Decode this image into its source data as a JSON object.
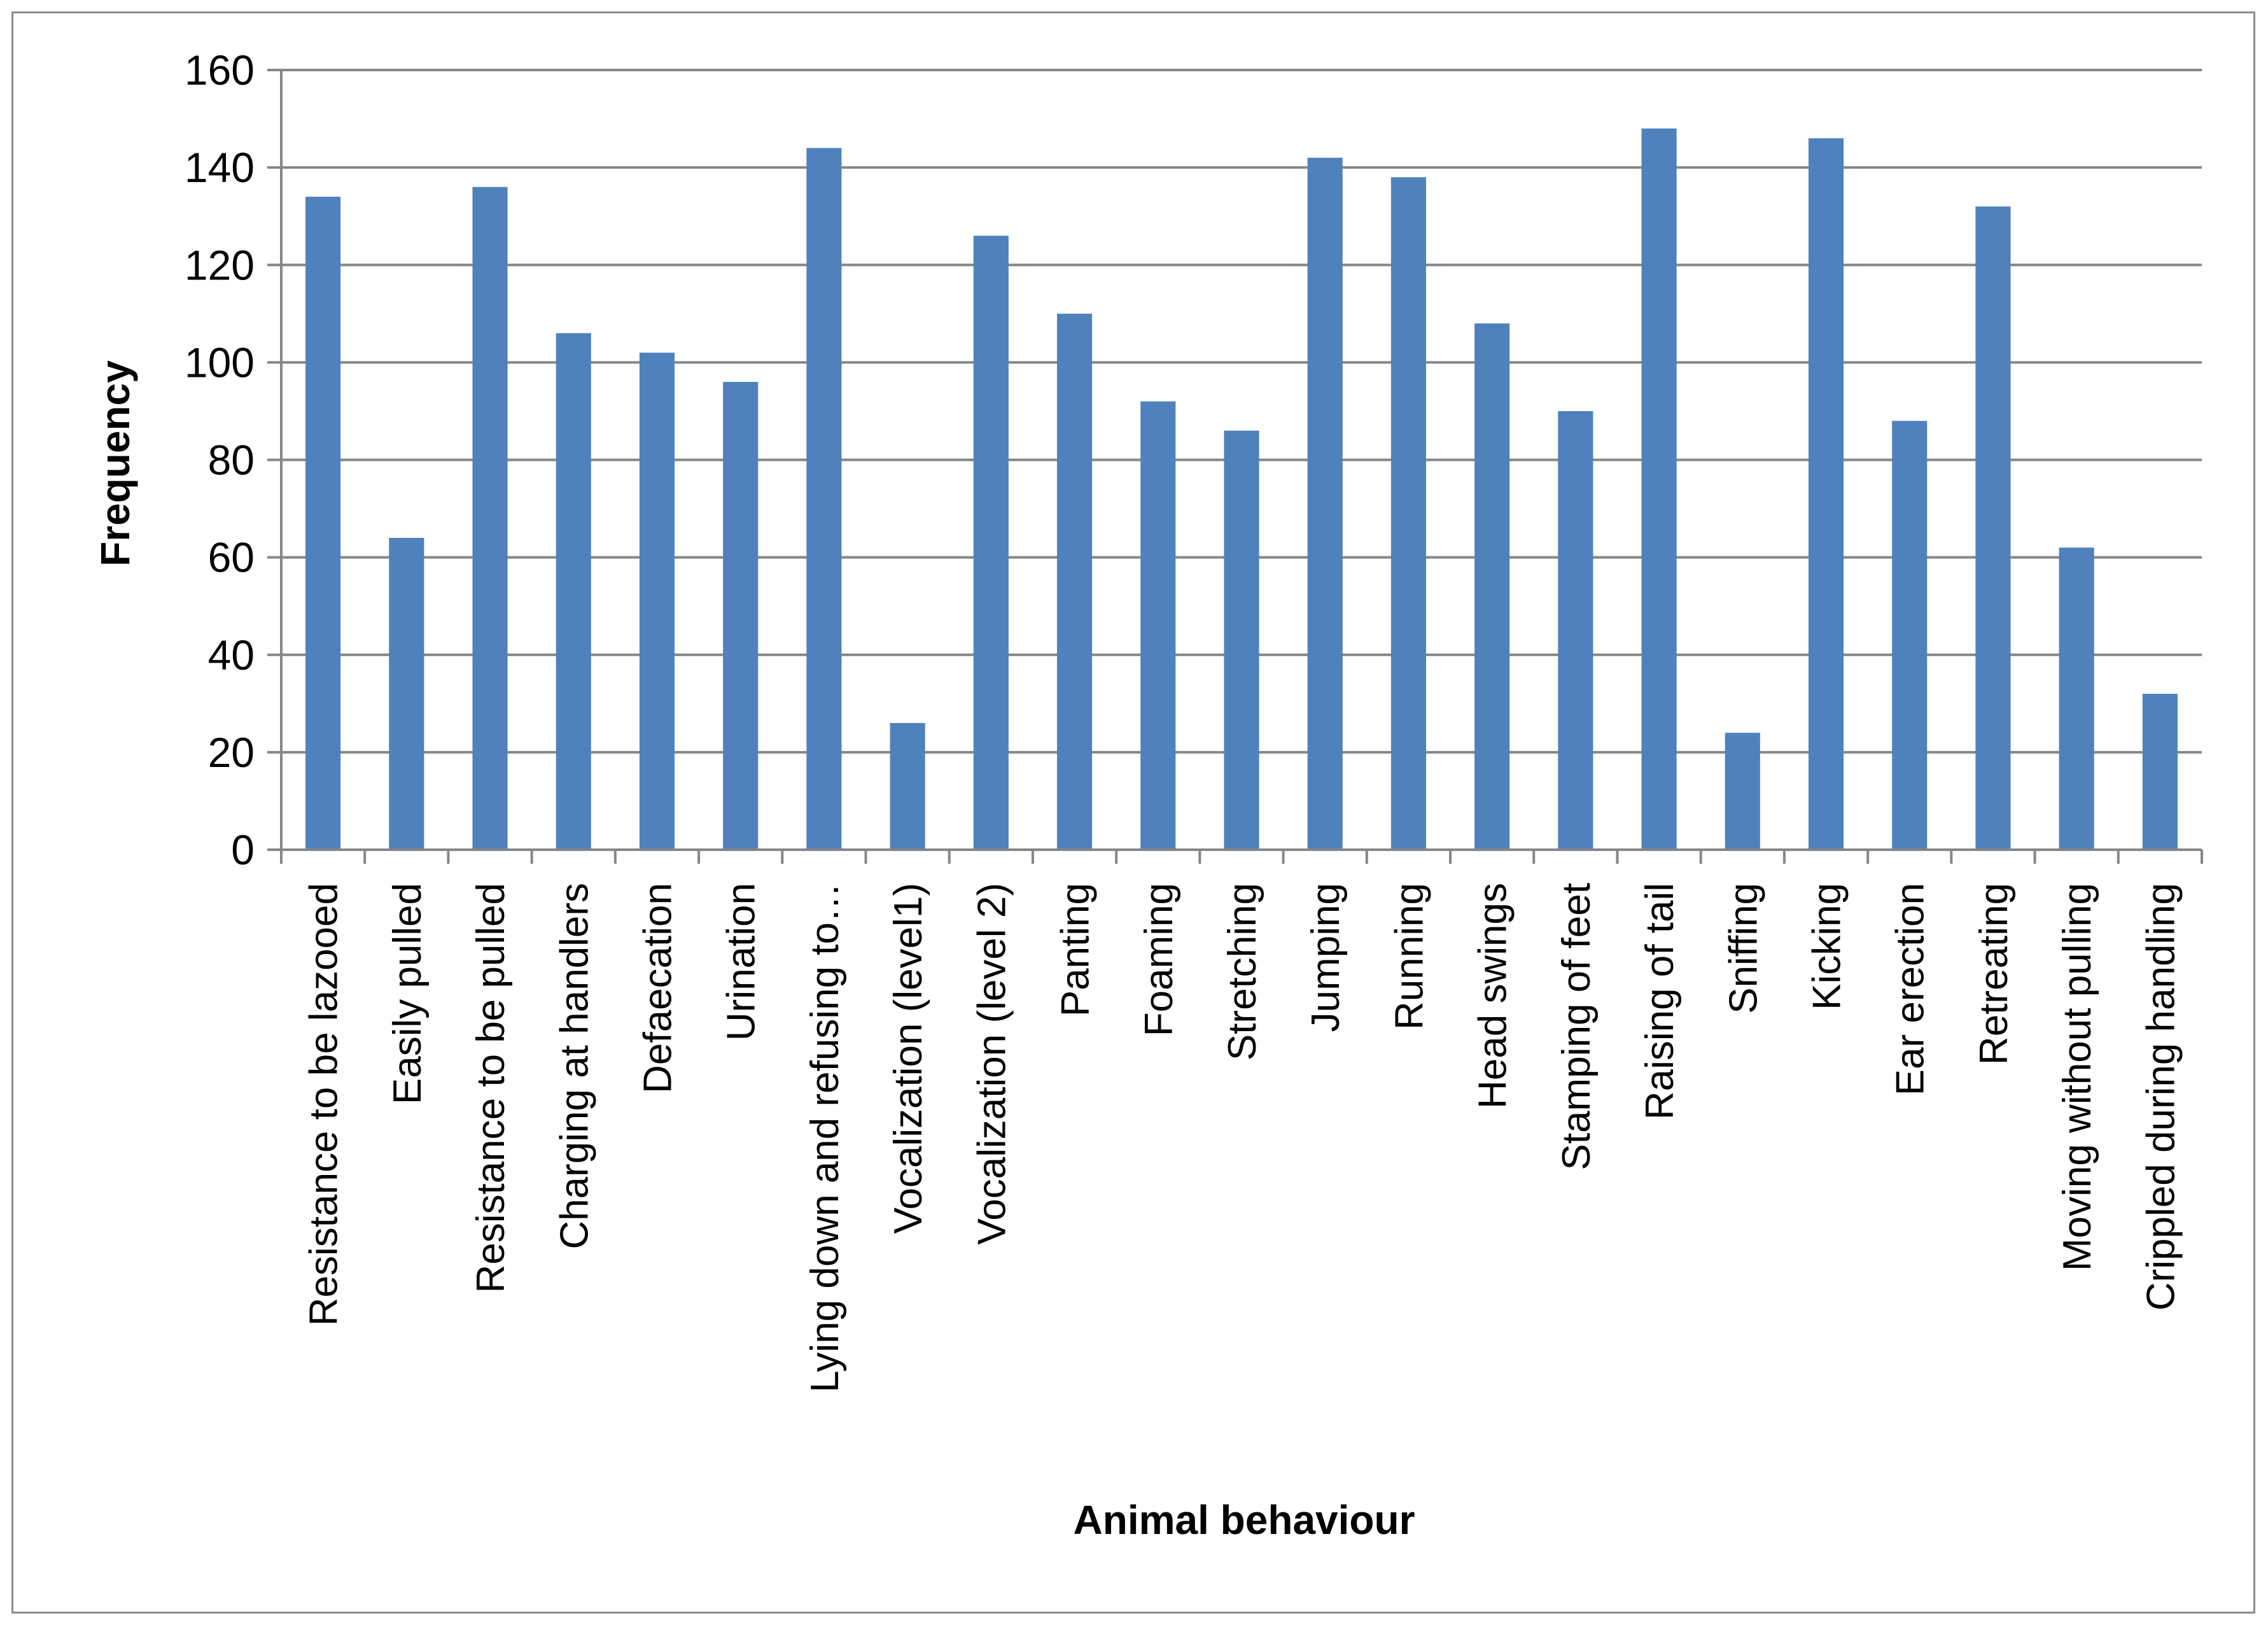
{
  "chart_data": {
    "type": "bar",
    "title": "",
    "xlabel": "Animal behaviour",
    "ylabel": "Frequency",
    "ylim": [
      0,
      160
    ],
    "yticks": [
      0,
      20,
      40,
      60,
      80,
      100,
      120,
      140,
      160
    ],
    "grid": true,
    "legend": "none",
    "colors": {
      "bar": "#4f81bd",
      "grid": "#868686",
      "axis": "#868686",
      "frame": "#8c8c8c"
    },
    "categories": [
      "Resistance to be lazooed",
      "Easily pulled",
      "Resistance to be pulled",
      "Charging at handlers",
      "Defaecation",
      "Urination",
      "Lying down and refusing to…",
      "Vocalization (level1)",
      "Vocalization (level 2)",
      "Panting",
      "Foaming",
      "Stretching",
      "Jumping",
      "Running",
      "Head swings",
      "Stamping of feet",
      "Raising of tail",
      "Sniffing",
      "Kicking",
      "Ear erection",
      "Retreating",
      "Moving without pulling",
      "Crippled during handling"
    ],
    "values": [
      134,
      64,
      136,
      106,
      102,
      96,
      144,
      26,
      126,
      110,
      92,
      86,
      142,
      138,
      108,
      90,
      148,
      24,
      146,
      88,
      132,
      62,
      32
    ]
  }
}
